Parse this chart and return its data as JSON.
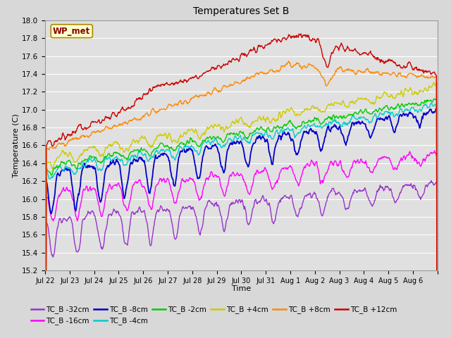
{
  "title": "Temperatures Set B",
  "xlabel": "Time",
  "ylabel": "Temperature (C)",
  "ylim": [
    15.2,
    18.0
  ],
  "background_color": "#d8d8d8",
  "plot_bg_color": "#e0e0e0",
  "annotation_text": "WP_met",
  "annotation_box_color": "#ffffcc",
  "annotation_box_edge": "#aa8800",
  "annotation_text_color": "#880000",
  "x_tick_labels": [
    "Jul 22",
    "Jul 23",
    "Jul 24",
    "Jul 25",
    "Jul 26",
    "Jul 27",
    "Jul 28",
    "Jul 29",
    "Jul 30",
    "Jul 31",
    "Aug 1",
    "Aug 2",
    "Aug 3",
    "Aug 4",
    "Aug 5",
    "Aug 6"
  ],
  "series": [
    {
      "label": "TC_B -32cm",
      "color": "#9933cc",
      "lw": 1.0
    },
    {
      "label": "TC_B -16cm",
      "color": "#ff00ff",
      "lw": 1.0
    },
    {
      "label": "TC_B -8cm",
      "color": "#0000cc",
      "lw": 1.3
    },
    {
      "label": "TC_B -4cm",
      "color": "#00cccc",
      "lw": 1.0
    },
    {
      "label": "TC_B -2cm",
      "color": "#00cc00",
      "lw": 1.0
    },
    {
      "label": "TC_B +4cm",
      "color": "#cccc00",
      "lw": 1.0
    },
    {
      "label": "TC_B +8cm",
      "color": "#ff8800",
      "lw": 1.0
    },
    {
      "label": "TC_B +12cm",
      "color": "#cc0000",
      "lw": 1.0
    }
  ]
}
